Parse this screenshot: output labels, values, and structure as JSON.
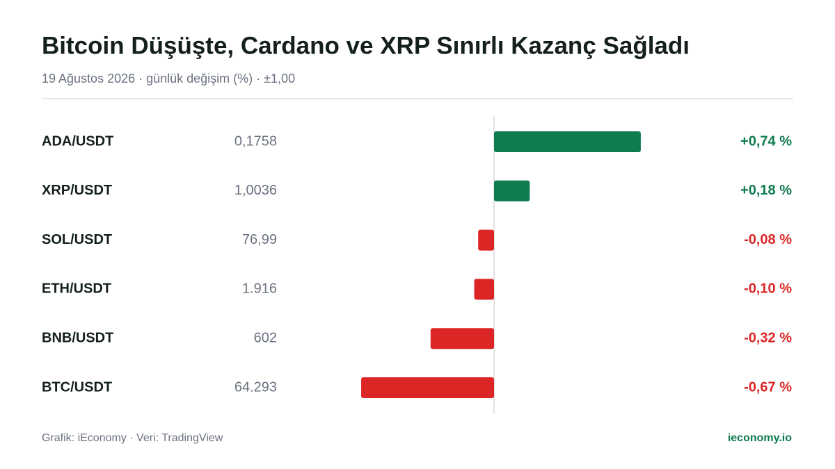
{
  "chart_data": {
    "type": "diverging-bar",
    "title": "Bitcoin Düşüşte, Cardano ve XRP Sınırlı Kazanç Sağladı",
    "subtitle": "19 Ağustos 2026 · günlük değişim (%) · ±1,00",
    "categories": [
      "ADA/USDT",
      "XRP/USDT",
      "SOL/USDT",
      "ETH/USDT",
      "BNB/USDT",
      "BTC/USDT"
    ],
    "prices": [
      "0,1758",
      "1,0036",
      "76,99",
      "1.916",
      "602",
      "64.293"
    ],
    "values": [
      0.74,
      0.18,
      -0.08,
      -0.1,
      -0.32,
      -0.67
    ],
    "value_labels": [
      "+0,74 %",
      "+0,18 %",
      "-0,08 %",
      "-0,10 %",
      "-0,32 %",
      "-0,67 %"
    ],
    "xlim": [
      -1,
      1
    ],
    "colors": {
      "positive": "#0e7c4f",
      "negative": "#dc2626"
    },
    "source": "Grafik: iEconomy · Veri: TradingView",
    "brand": "ieconomy.io"
  }
}
